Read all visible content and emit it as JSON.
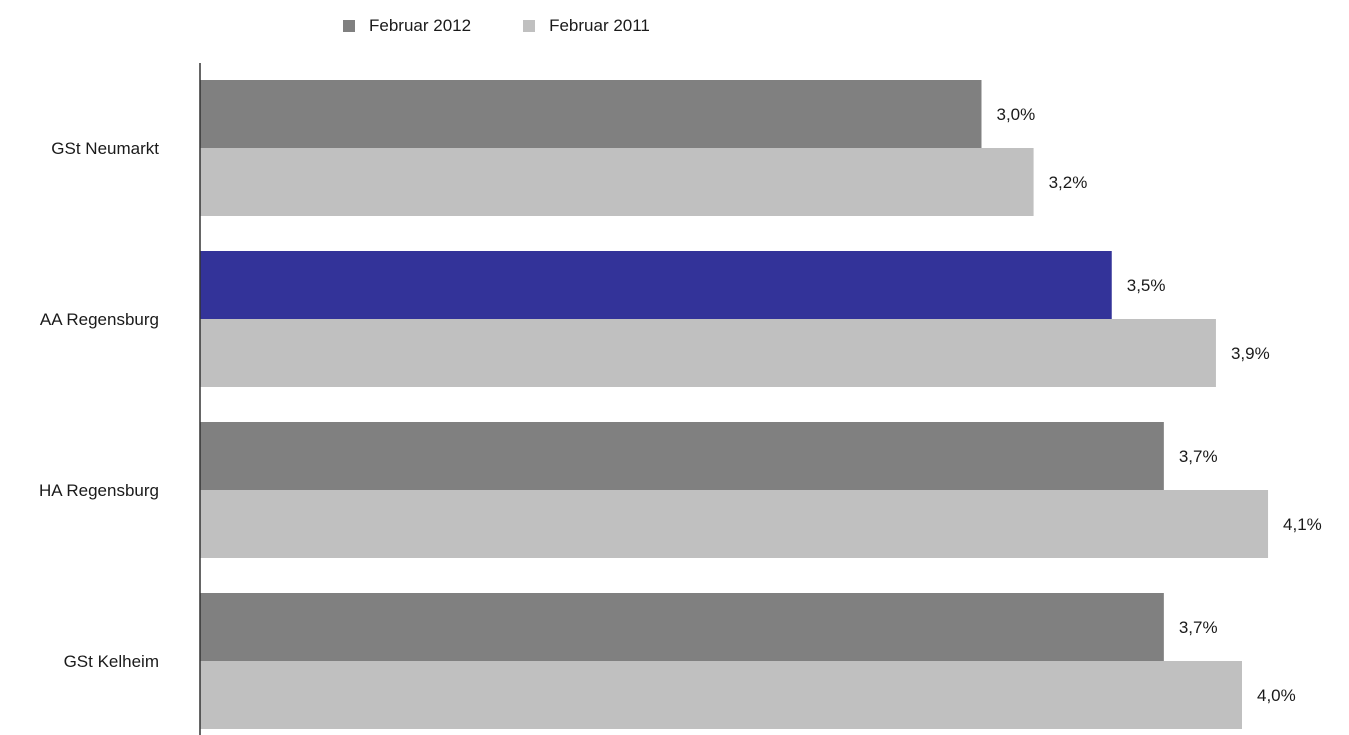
{
  "chart_data": {
    "type": "bar",
    "orientation": "horizontal",
    "categories": [
      "GSt Neumarkt",
      "AA Regensburg",
      "HA Regensburg",
      "GSt Kelheim"
    ],
    "series": [
      {
        "name": "Februar 2012",
        "color": "#808080",
        "values": [
          3.0,
          3.5,
          3.7,
          3.7
        ],
        "labels": [
          "3,0%",
          "3,5%",
          "3,7%",
          "3,7%"
        ]
      },
      {
        "name": "Februar 2011",
        "color": "#c0c0c0",
        "values": [
          3.2,
          3.9,
          4.1,
          4.0
        ],
        "labels": [
          "3,2%",
          "3,9%",
          "4,1%",
          "4,0%"
        ]
      }
    ],
    "highlight": {
      "category_index": 1,
      "series_index": 0,
      "color": "#333399"
    },
    "xlim": [
      0,
      4.2
    ],
    "grid": false,
    "legend_position": "top"
  }
}
